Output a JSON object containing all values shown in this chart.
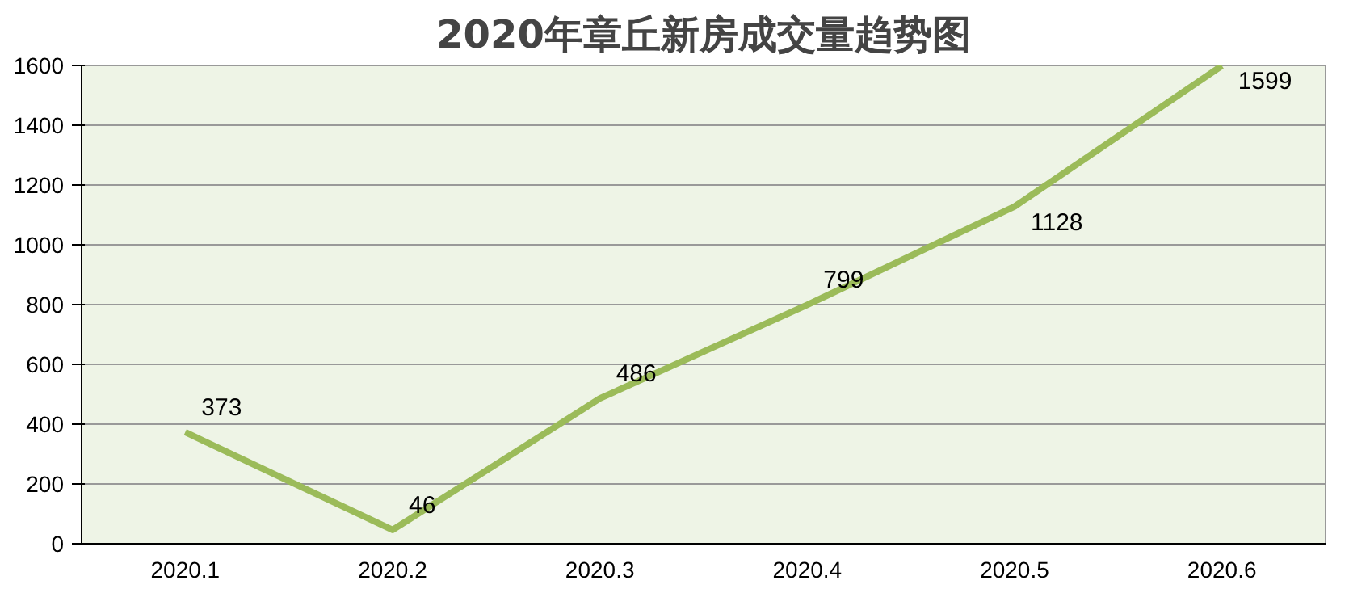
{
  "chart_data": {
    "type": "line",
    "title": "2020年章丘新房成交量趋势图",
    "categories": [
      "2020.1",
      "2020.2",
      "2020.3",
      "2020.4",
      "2020.5",
      "2020.6"
    ],
    "series": [
      {
        "color": "#9bbb59",
        "values": [
          373,
          46,
          486,
          799,
          1128,
          1599
        ]
      }
    ],
    "ylim": [
      0,
      1600
    ],
    "yticks": [
      0,
      200,
      400,
      600,
      800,
      1000,
      1200,
      1400,
      1600
    ],
    "grid": "y",
    "data_labels": true,
    "marker": "none",
    "line_style": "solid"
  }
}
